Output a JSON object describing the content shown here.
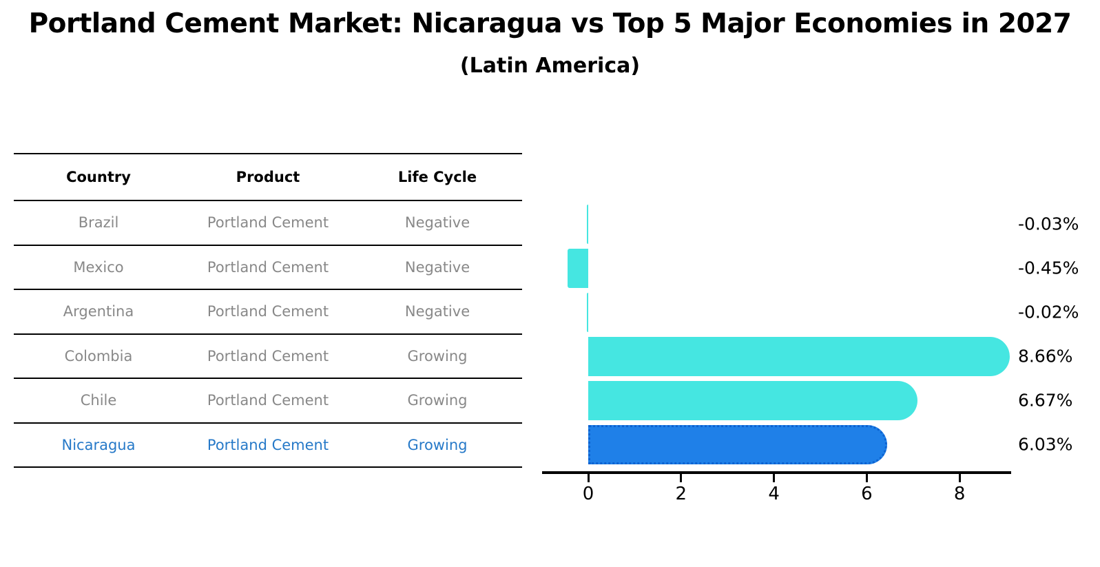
{
  "header": {
    "title": "Portland Cement Market: Nicaragua vs Top 5 Major Economies in 2027",
    "subtitle": "(Latin America)"
  },
  "table": {
    "headers": [
      "Country",
      "Product",
      "Life Cycle"
    ],
    "rows": [
      [
        "Brazil",
        "Portland Cement",
        "Negative"
      ],
      [
        "Mexico",
        "Portland Cement",
        "Negative"
      ],
      [
        "Argentina",
        "Portland Cement",
        "Negative"
      ],
      [
        "Colombia",
        "Portland Cement",
        "Growing"
      ],
      [
        "Chile",
        "Portland Cement",
        "Growing"
      ],
      [
        "Nicaragua",
        "Portland Cement",
        "Growing"
      ]
    ],
    "highlight_row": "Nicaragua"
  },
  "chart_data": {
    "type": "bar",
    "orientation": "horizontal",
    "categories": [
      "Brazil",
      "Mexico",
      "Argentina",
      "Colombia",
      "Chile",
      "Nicaragua"
    ],
    "values": [
      -0.03,
      -0.45,
      -0.02,
      8.66,
      6.67,
      6.03
    ],
    "labels": [
      "-0.03%",
      "-0.45%",
      "-0.02%",
      "8.66%",
      "6.67%",
      "6.03%"
    ],
    "highlight_category": "Nicaragua",
    "x_ticks": [
      0,
      2,
      4,
      6,
      8
    ],
    "xlim": [
      -1.0,
      9.11
    ],
    "grid": false,
    "legend": "none",
    "title": "",
    "xlabel": "",
    "ylabel": ""
  },
  "colors": {
    "bar_cyan": "#45E6E1",
    "bar_blue": "#1F80E8",
    "highlight_border": "#0D62D0",
    "highlight_text": "#2679C8",
    "row_text": "#888888",
    "axis_black": "#000000"
  }
}
